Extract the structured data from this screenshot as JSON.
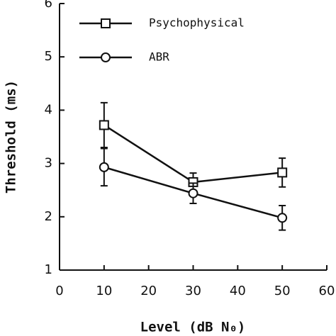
{
  "chart_data": {
    "type": "line",
    "xlabel": "Level (dB N₀)",
    "ylabel": "Threshold (ms)",
    "x": [
      10,
      30,
      50
    ],
    "series": [
      {
        "name": "Psychophysical",
        "color": "#111111",
        "marker": "square",
        "values": [
          3.72,
          2.65,
          2.83
        ],
        "errors": [
          0.42,
          0.17,
          0.27
        ]
      },
      {
        "name": "ABR",
        "color": "#111111",
        "marker": "circle",
        "values": [
          2.93,
          2.44,
          1.98
        ],
        "errors": [
          0.35,
          0.19,
          0.23
        ]
      }
    ],
    "xlim": [
      0,
      60
    ],
    "xticks": [
      0,
      10,
      20,
      30,
      40,
      50,
      60
    ],
    "ylim": [
      1,
      6
    ],
    "yticks": [
      1,
      2,
      3,
      4,
      5,
      6
    ],
    "legend": "upper left"
  }
}
